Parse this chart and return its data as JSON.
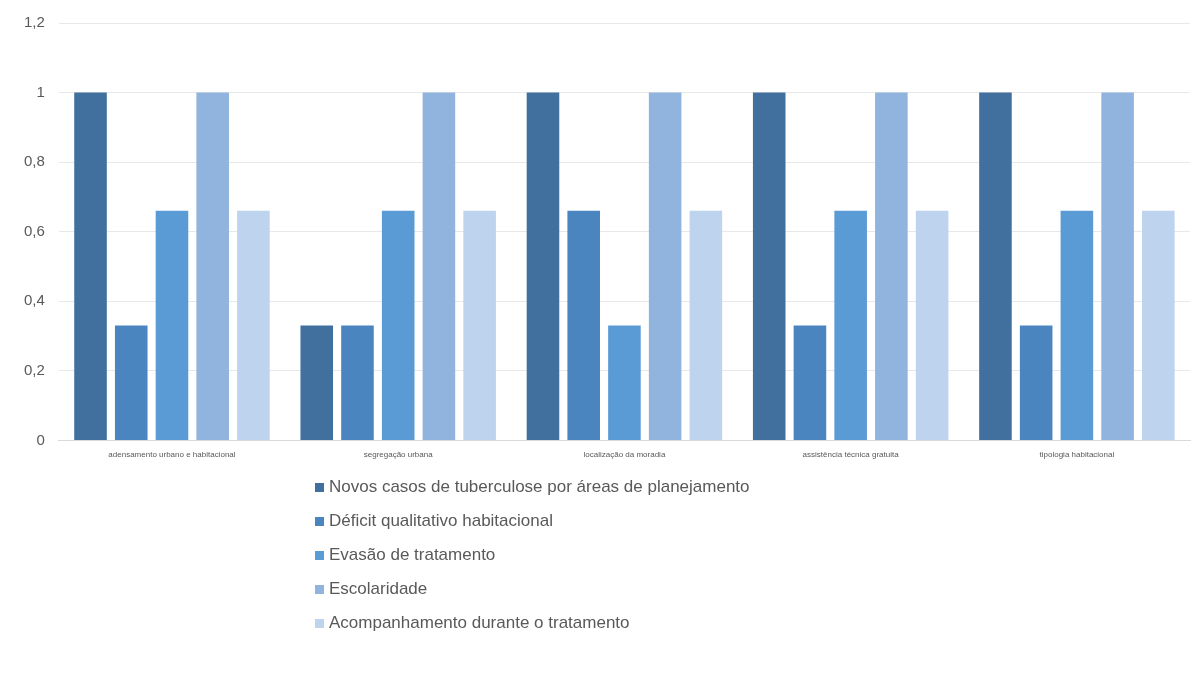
{
  "chart_data": {
    "type": "bar",
    "categories": [
      "adensamento urbano e habitacional",
      "segregação urbana",
      "localização da moradia",
      "assistência técnica gratuita",
      "tipologia habitacional"
    ],
    "series": [
      {
        "name": "Novos casos de tuberculose por áreas de planejamento",
        "color": "#41709e",
        "values": [
          1,
          0.33,
          1,
          1,
          1
        ]
      },
      {
        "name": "Déficit qualitativo habitacional",
        "color": "#4a85c0",
        "values": [
          0.33,
          0.33,
          0.66,
          0.33,
          0.33
        ]
      },
      {
        "name": " Evasão de tratamento",
        "color": "#5b9bd5",
        "values": [
          0.66,
          0.66,
          0.33,
          0.66,
          0.66
        ]
      },
      {
        "name": " Escolaridade",
        "color": "#90b4de",
        "values": [
          1,
          1,
          1,
          1,
          1
        ]
      },
      {
        "name": "Acompanhamento durante o tratamento",
        "color": "#bdd3ee",
        "values": [
          0.66,
          0.66,
          0.66,
          0.66,
          0.66
        ]
      }
    ],
    "ylim": [
      0,
      1.2
    ],
    "yticks": [
      0,
      {
        "value": 0.2,
        "label": "0,2"
      },
      {
        "value": 0.4,
        "label": "0,4"
      },
      {
        "value": 0.6,
        "label": "0,6"
      },
      {
        "value": 0.8,
        "label": "0,8"
      },
      1,
      {
        "value": 1.2,
        "label": "1,2"
      }
    ],
    "grid": "y",
    "legend": "bottom"
  }
}
